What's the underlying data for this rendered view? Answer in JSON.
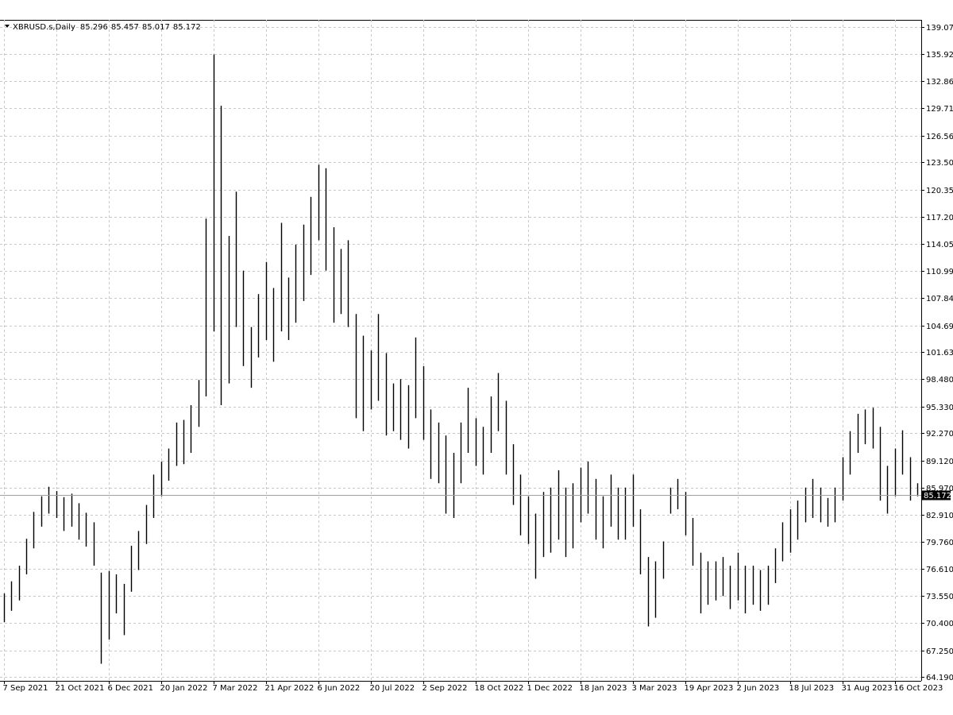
{
  "chart_data": {
    "type": "ohlc",
    "symbol": "XBRUSD.s,Daily",
    "ohlc": [
      85.296,
      85.457,
      85.017,
      85.172
    ],
    "color": "#000000",
    "grid": true,
    "categories": [
      "7 Sep 2021",
      null,
      null,
      null,
      null,
      null,
      null,
      "21 Oct 2021",
      null,
      null,
      null,
      null,
      null,
      null,
      "6 Dec 2021",
      null,
      null,
      null,
      null,
      null,
      null,
      "20 Jan 2022",
      null,
      null,
      null,
      null,
      null,
      null,
      "7 Mar 2022",
      null,
      null,
      null,
      null,
      null,
      null,
      "21 Apr 2022",
      null,
      null,
      null,
      null,
      null,
      null,
      "6 Jun 2022",
      null,
      null,
      null,
      null,
      null,
      null,
      "20 Jul 2022",
      null,
      null,
      null,
      null,
      null,
      null,
      "2 Sep 2022",
      null,
      null,
      null,
      null,
      null,
      null,
      "18 Oct 2022",
      null,
      null,
      null,
      null,
      null,
      null,
      "1 Dec 2022",
      null,
      null,
      null,
      null,
      null,
      null,
      "18 Jan 2023",
      null,
      null,
      null,
      null,
      null,
      null,
      "3 Mar 2023",
      null,
      null,
      null,
      null,
      null,
      null,
      "19 Apr 2023",
      null,
      null,
      null,
      null,
      null,
      null,
      "2 Jun 2023",
      null,
      null,
      null,
      null,
      null,
      null,
      "18 Jul 2023",
      null,
      null,
      null,
      null,
      null,
      null,
      "31 Aug 2023",
      null,
      null,
      null,
      null,
      null,
      null,
      "16 Oct 2023",
      null,
      null,
      null
    ],
    "high": [
      73.8,
      75.2,
      77.0,
      80.1,
      83.2,
      85.0,
      86.1,
      85.6,
      84.9,
      85.3,
      84.2,
      83.1,
      82.0,
      76.2,
      76.4,
      76.0,
      74.9,
      79.3,
      81.0,
      84.0,
      87.5,
      89.0,
      90.5,
      93.5,
      93.8,
      95.5,
      98.4,
      117.0,
      135.9,
      130.0,
      115.0,
      120.1,
      111.0,
      104.5,
      108.3,
      112.0,
      109.0,
      116.5,
      110.2,
      114.0,
      116.3,
      119.5,
      123.2,
      122.8,
      116.0,
      113.5,
      114.5,
      106.0,
      103.5,
      101.8,
      106.0,
      101.5,
      98.0,
      98.5,
      97.8,
      103.3,
      100.0,
      95.0,
      93.5,
      92.0,
      90.0,
      93.5,
      97.5,
      94.0,
      93.0,
      96.5,
      99.2,
      96.0,
      91.0,
      87.5,
      85.0,
      83.0,
      85.5,
      86.0,
      88.0,
      86.0,
      86.5,
      88.3,
      89.0,
      87.0,
      85.0,
      87.5,
      86.0,
      86.0,
      87.5,
      83.5,
      78.0,
      77.5,
      79.8,
      86.0,
      87.0,
      85.5,
      82.5,
      78.5,
      77.5,
      77.5,
      78.0,
      77.0,
      78.5,
      77.0,
      77.0,
      76.5,
      77.0,
      79.0,
      82.0,
      83.5,
      84.5,
      86.0,
      87.0,
      86.0,
      84.8,
      86.0,
      89.5,
      92.5,
      94.5,
      95.0,
      95.2,
      93.0,
      88.5,
      90.5,
      92.6,
      89.5,
      86.5
    ],
    "low": [
      70.5,
      71.8,
      73.0,
      76.0,
      79.0,
      81.5,
      83.0,
      82.5,
      81.0,
      81.5,
      80.0,
      79.2,
      77.0,
      65.7,
      68.5,
      71.5,
      69.0,
      74.0,
      76.5,
      79.5,
      82.5,
      85.0,
      86.8,
      88.5,
      88.7,
      90.0,
      93.0,
      96.5,
      104.0,
      95.5,
      98.0,
      104.5,
      100.0,
      97.5,
      101.0,
      103.0,
      100.5,
      104.0,
      103.0,
      105.0,
      107.5,
      110.5,
      114.5,
      111.0,
      105.0,
      106.0,
      104.5,
      94.0,
      92.5,
      95.0,
      96.0,
      92.0,
      92.5,
      91.5,
      90.5,
      94.0,
      91.5,
      87.0,
      86.5,
      83.0,
      82.5,
      86.5,
      90.0,
      88.5,
      87.5,
      90.0,
      92.5,
      87.5,
      84.0,
      80.5,
      79.5,
      75.5,
      78.0,
      78.5,
      80.0,
      78.0,
      79.0,
      82.0,
      83.0,
      80.0,
      79.0,
      81.5,
      80.0,
      80.0,
      81.5,
      76.0,
      70.0,
      71.0,
      75.5,
      83.0,
      83.5,
      80.5,
      77.0,
      71.5,
      72.5,
      73.0,
      73.5,
      72.0,
      73.0,
      71.5,
      72.5,
      71.8,
      72.5,
      75.0,
      77.5,
      78.5,
      80.0,
      82.0,
      82.5,
      82.0,
      81.5,
      82.0,
      84.5,
      87.5,
      90.0,
      91.0,
      90.5,
      84.5,
      83.0,
      85.0,
      87.5,
      84.5,
      85.0
    ],
    "ylim": [
      64.19,
      139.07
    ],
    "yticks": [
      {
        "value": 139.07,
        "label": "139.070"
      },
      {
        "value": 135.92,
        "label": "135.920"
      },
      {
        "value": 132.86,
        "label": "132.860"
      },
      {
        "value": 129.71,
        "label": "129.710"
      },
      {
        "value": 126.56,
        "label": "126.560"
      },
      {
        "value": 123.5,
        "label": "123.500"
      },
      {
        "value": 120.35,
        "label": "120.350"
      },
      {
        "value": 117.2,
        "label": "117.200"
      },
      {
        "value": 114.05,
        "label": "114.050"
      },
      {
        "value": 110.99,
        "label": "110.990"
      },
      {
        "value": 107.84,
        "label": "107.840"
      },
      {
        "value": 104.69,
        "label": "104.690"
      },
      {
        "value": 101.63,
        "label": "101.630"
      },
      {
        "value": 98.48,
        "label": "98.480"
      },
      {
        "value": 95.33,
        "label": "95.330"
      },
      {
        "value": 92.27,
        "label": "92.270"
      },
      {
        "value": 89.12,
        "label": "89.120"
      },
      {
        "value": 85.97,
        "label": "85.970"
      },
      {
        "value": 82.91,
        "label": "82.910"
      },
      {
        "value": 79.76,
        "label": "79.760"
      },
      {
        "value": 76.61,
        "label": "76.610"
      },
      {
        "value": 73.55,
        "label": "73.550"
      },
      {
        "value": 70.4,
        "label": "70.400"
      },
      {
        "value": 67.25,
        "label": "67.250"
      },
      {
        "value": 64.19,
        "label": "64.190"
      }
    ]
  }
}
